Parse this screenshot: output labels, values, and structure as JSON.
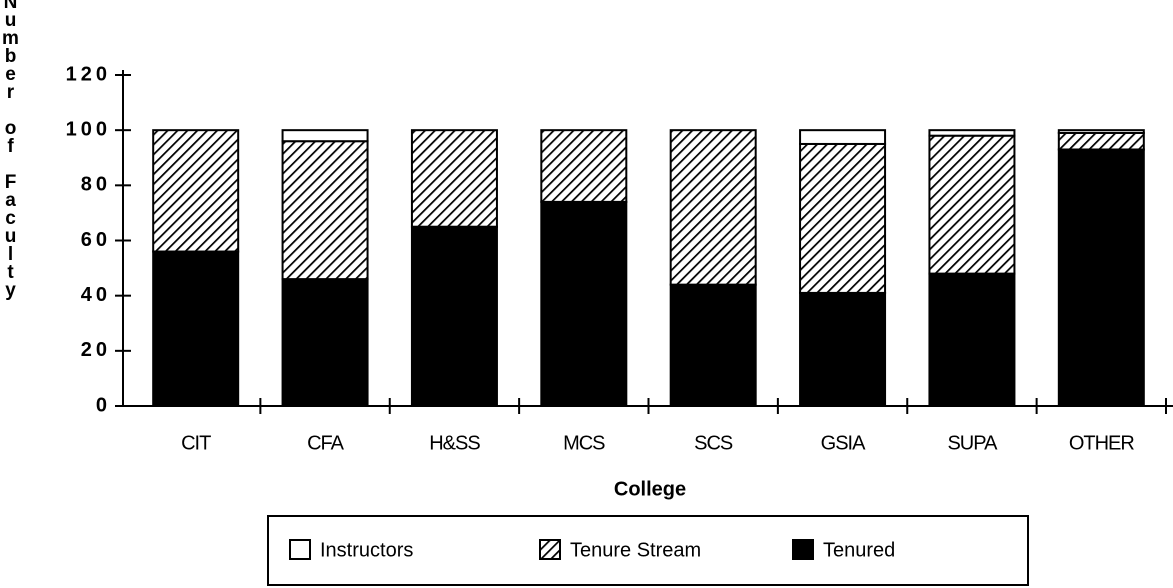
{
  "chart_data": {
    "type": "stacked_bar",
    "x_label": "College",
    "y_label": "Number of Faculty",
    "categories": [
      "CIT",
      "CFA",
      "H&SS",
      "MCS",
      "SCS",
      "GSIA",
      "SUPA",
      "OTHER"
    ],
    "series": [
      {
        "name": "Instructors",
        "color": "#ffffff",
        "values": [
          0,
          4,
          0,
          0,
          0,
          5,
          2,
          1
        ]
      },
      {
        "name": "Tenure Stream",
        "color": "#000000",
        "pattern": "diagonal-hatch",
        "values": [
          44,
          50,
          35,
          26,
          56,
          54,
          50,
          6
        ]
      },
      {
        "name": "Tenured",
        "color": "#000000",
        "values": [
          56,
          46,
          65,
          74,
          44,
          41,
          48,
          93
        ]
      }
    ],
    "ylim": [
      0,
      120
    ],
    "yticks": [
      0,
      20,
      40,
      60,
      80,
      100,
      120
    ],
    "legend": "bottom"
  }
}
